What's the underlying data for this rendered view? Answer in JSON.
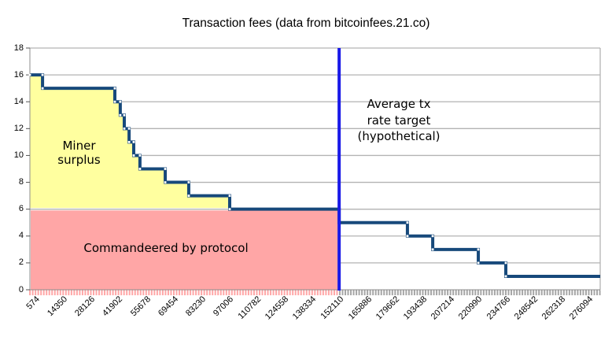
{
  "title": "Transaction fees (data from bitcoinfees.21.co)",
  "annotations": {
    "miner_surplus": "Miner\nsurplus",
    "commandeered": "Commandeered by protocol",
    "rate_target": "Average tx\nrate target\n(hypothetical)"
  },
  "chart_data": {
    "type": "line",
    "subtype": "step",
    "title": "Transaction fees (data from bitcoinfees.21.co)",
    "x_axis": {
      "range": [
        0,
        284000
      ],
      "tick_labels": [
        "574",
        "14350",
        "28126",
        "41902",
        "55678",
        "69454",
        "83230",
        "97006",
        "110782",
        "124558",
        "138334",
        "152110",
        "165886",
        "179662",
        "193438",
        "207214",
        "220990",
        "234766",
        "248542",
        "262318",
        "276094"
      ],
      "tick_values": [
        574,
        14350,
        28126,
        41902,
        55678,
        69454,
        83230,
        97006,
        110782,
        124558,
        138334,
        152110,
        165886,
        179662,
        193438,
        207214,
        220990,
        234766,
        248542,
        262318,
        276094
      ],
      "minor_tick_interval": 1377.6,
      "grid": false
    },
    "y_axis": {
      "range": [
        0,
        18
      ],
      "tick_labels": [
        "0",
        "2",
        "4",
        "6",
        "8",
        "10",
        "12",
        "14",
        "16",
        "18"
      ],
      "tick_values": [
        0,
        2,
        4,
        6,
        8,
        10,
        12,
        14,
        16,
        18
      ],
      "grid": true
    },
    "series": [
      {
        "name": "transaction-fee",
        "color": "#17497B",
        "marker_color": "#FFFFFF",
        "steps": [
          {
            "fee": 16,
            "from": 0,
            "to": 6300
          },
          {
            "fee": 15,
            "from": 6300,
            "to": 42300
          },
          {
            "fee": 14,
            "from": 42300,
            "to": 45000
          },
          {
            "fee": 13,
            "from": 45000,
            "to": 47000
          },
          {
            "fee": 12,
            "from": 47000,
            "to": 49400
          },
          {
            "fee": 11,
            "from": 49400,
            "to": 51700
          },
          {
            "fee": 10,
            "from": 51700,
            "to": 54800
          },
          {
            "fee": 9,
            "from": 54800,
            "to": 67400
          },
          {
            "fee": 8,
            "from": 67400,
            "to": 79100
          },
          {
            "fee": 7,
            "from": 79100,
            "to": 99500
          },
          {
            "fee": 6,
            "from": 99500,
            "to": 154000
          },
          {
            "fee": 5,
            "from": 154000,
            "to": 188000
          },
          {
            "fee": 4,
            "from": 188000,
            "to": 200600
          },
          {
            "fee": 3,
            "from": 200600,
            "to": 223300
          },
          {
            "fee": 2,
            "from": 223300,
            "to": 237000
          },
          {
            "fee": 1,
            "from": 237000,
            "to": 284000
          }
        ]
      }
    ],
    "vline": {
      "x": 154000,
      "color": "#1A1AE8",
      "label": "Average tx\nrate target\n(hypothetical)"
    },
    "regions": [
      {
        "name": "miner-surplus",
        "label": "Miner\nsurplus",
        "color": "#FFFF9F",
        "description": "area between fee curve and fee=6, from x=0 to x=99500"
      },
      {
        "name": "commandeered-by-protocol",
        "label": "Commandeered by protocol",
        "color": "#FFA6A6",
        "description": "area from fee=0 to fee=6, from x=0 to x=154000"
      }
    ],
    "colors": {
      "grid": "#B3B3B3",
      "axis": "#8C8C8C",
      "minor_tick_left": "#FFA6A6",
      "minor_tick_right": "#A6A6A6"
    },
    "legend": "none"
  }
}
